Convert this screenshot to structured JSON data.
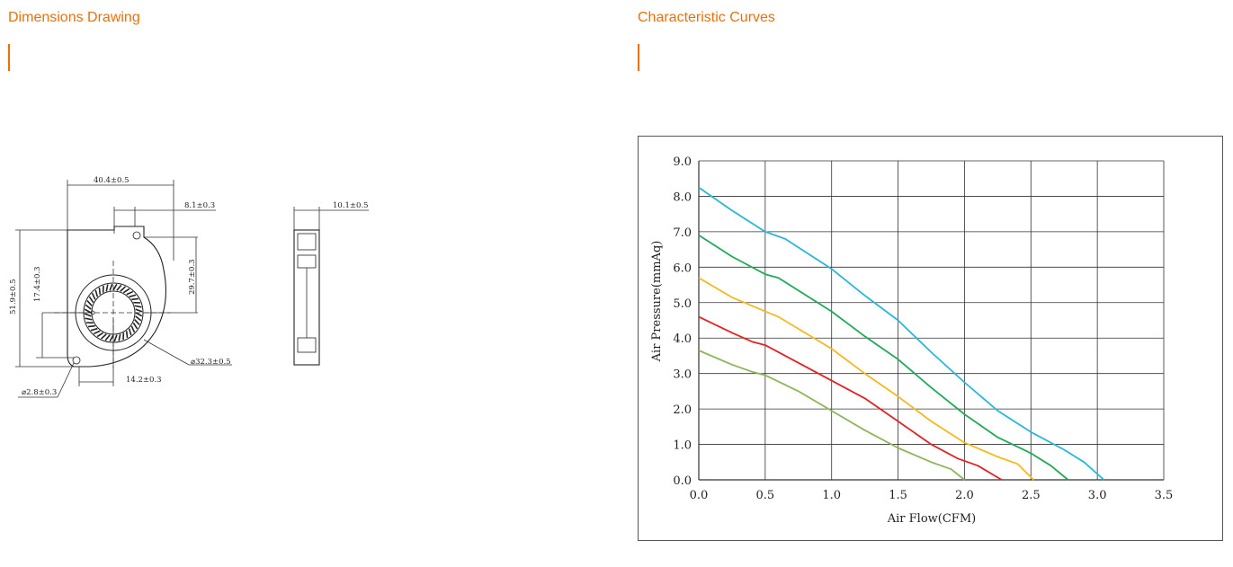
{
  "sections": {
    "dimensions_title": "Dimensions Drawing",
    "curves_title": "Characteristic Curves"
  },
  "drawing": {
    "labels": {
      "overall_width": "40.4±0.5",
      "outlet_offset": "8.1±0.3",
      "outlet_height": "29.7±0.3",
      "overall_height": "51.9±0.5",
      "center_height": "17.4±0.3",
      "hub_offset": "14.2±0.3",
      "impeller_diameter": "⌀32.3±0.5",
      "hole_diameter": "⌀2.8±0.3",
      "thickness": "10.1±0.5"
    }
  },
  "chart_data": {
    "type": "line",
    "title": "",
    "xlabel": "Air Flow(CFM)",
    "ylabel": "Air Pressure(mmAq)",
    "xlim": [
      0,
      3.5
    ],
    "ylim": [
      0,
      9
    ],
    "x_ticks": [
      "0.0",
      "0.5",
      "1.0",
      "1.5",
      "2.0",
      "2.5",
      "3.0",
      "3.5"
    ],
    "y_ticks": [
      "0.0",
      "1.0",
      "2.0",
      "3.0",
      "4.0",
      "5.0",
      "6.0",
      "7.0",
      "8.0",
      "9.0"
    ],
    "grid": true,
    "series": [
      {
        "color": "#29b6d8",
        "points": [
          [
            0,
            8.25
          ],
          [
            0.25,
            7.6
          ],
          [
            0.5,
            7.0
          ],
          [
            0.65,
            6.8
          ],
          [
            1.0,
            5.95
          ],
          [
            1.25,
            5.2
          ],
          [
            1.5,
            4.5
          ],
          [
            1.75,
            3.6
          ],
          [
            2.0,
            2.75
          ],
          [
            2.25,
            1.95
          ],
          [
            2.5,
            1.35
          ],
          [
            2.75,
            0.85
          ],
          [
            2.9,
            0.5
          ],
          [
            3.05,
            0.0
          ]
        ]
      },
      {
        "color": "#1faa5a",
        "points": [
          [
            0,
            6.9
          ],
          [
            0.25,
            6.3
          ],
          [
            0.5,
            5.8
          ],
          [
            0.6,
            5.7
          ],
          [
            1.0,
            4.75
          ],
          [
            1.25,
            4.05
          ],
          [
            1.5,
            3.4
          ],
          [
            1.75,
            2.6
          ],
          [
            2.0,
            1.85
          ],
          [
            2.25,
            1.2
          ],
          [
            2.5,
            0.75
          ],
          [
            2.65,
            0.4
          ],
          [
            2.78,
            0.0
          ]
        ]
      },
      {
        "color": "#f5b820",
        "points": [
          [
            0,
            5.7
          ],
          [
            0.25,
            5.15
          ],
          [
            0.5,
            4.75
          ],
          [
            0.6,
            4.6
          ],
          [
            1.0,
            3.7
          ],
          [
            1.25,
            3.0
          ],
          [
            1.5,
            2.35
          ],
          [
            1.75,
            1.65
          ],
          [
            2.0,
            1.05
          ],
          [
            2.25,
            0.65
          ],
          [
            2.4,
            0.45
          ],
          [
            2.52,
            0.0
          ]
        ]
      },
      {
        "color": "#e02424",
        "points": [
          [
            0,
            4.6
          ],
          [
            0.25,
            4.15
          ],
          [
            0.4,
            3.9
          ],
          [
            0.5,
            3.8
          ],
          [
            0.75,
            3.3
          ],
          [
            1.0,
            2.8
          ],
          [
            1.25,
            2.3
          ],
          [
            1.5,
            1.65
          ],
          [
            1.75,
            1.0
          ],
          [
            1.95,
            0.6
          ],
          [
            2.1,
            0.4
          ],
          [
            2.28,
            0.0
          ]
        ]
      },
      {
        "color": "#8db55a",
        "points": [
          [
            0,
            3.65
          ],
          [
            0.25,
            3.25
          ],
          [
            0.4,
            3.05
          ],
          [
            0.5,
            2.95
          ],
          [
            0.75,
            2.5
          ],
          [
            1.0,
            1.95
          ],
          [
            1.25,
            1.4
          ],
          [
            1.5,
            0.9
          ],
          [
            1.75,
            0.5
          ],
          [
            1.9,
            0.3
          ],
          [
            2.0,
            0.0
          ]
        ]
      }
    ]
  }
}
